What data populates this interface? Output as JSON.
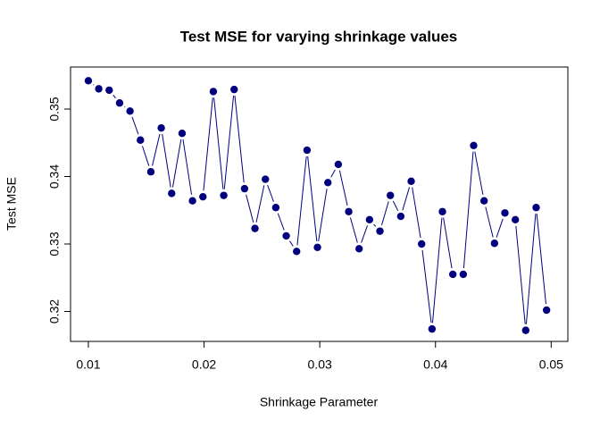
{
  "chart_data": {
    "type": "line",
    "title": "Test MSE for varying shrinkage values",
    "x_label": "Shrinkage Parameter",
    "y_label": "Test MSE",
    "x": [
      0.01,
      0.0109,
      0.0118,
      0.0127,
      0.0136,
      0.0145,
      0.0154,
      0.0163,
      0.0172,
      0.0181,
      0.019,
      0.0199,
      0.0208,
      0.0217,
      0.0226,
      0.0235,
      0.0244,
      0.0253,
      0.0262,
      0.0271,
      0.028,
      0.0289,
      0.0298,
      0.0307,
      0.0316,
      0.0325,
      0.0334,
      0.0343,
      0.0352,
      0.0361,
      0.037,
      0.0379,
      0.0388,
      0.0397,
      0.0406,
      0.0415,
      0.0424,
      0.0433,
      0.0442,
      0.0451,
      0.046,
      0.0469,
      0.0478,
      0.0487,
      0.0496
    ],
    "series": [
      {
        "name": "Test MSE",
        "color": "#00007f",
        "values": [
          0.3542,
          0.353,
          0.3528,
          0.3509,
          0.3497,
          0.3454,
          0.3407,
          0.3472,
          0.3375,
          0.3464,
          0.3364,
          0.337,
          0.3526,
          0.3372,
          0.3529,
          0.3382,
          0.3323,
          0.3396,
          0.3354,
          0.3312,
          0.3289,
          0.3439,
          0.3295,
          0.3391,
          0.3418,
          0.3348,
          0.3293,
          0.3336,
          0.3319,
          0.3372,
          0.3341,
          0.3393,
          0.33,
          0.3174,
          0.3348,
          0.3255,
          0.3255,
          0.3446,
          0.3364,
          0.3301,
          0.3346,
          0.3336,
          0.3172,
          0.3354,
          0.3202
        ]
      }
    ],
    "xlim": [
      0.00846,
      0.05144
    ],
    "ylim": [
      0.31556,
      0.35623
    ],
    "xticks": [
      0.01,
      0.02,
      0.03,
      0.04,
      0.05
    ],
    "yticks": [
      0.32,
      0.33,
      0.34,
      0.35
    ]
  }
}
